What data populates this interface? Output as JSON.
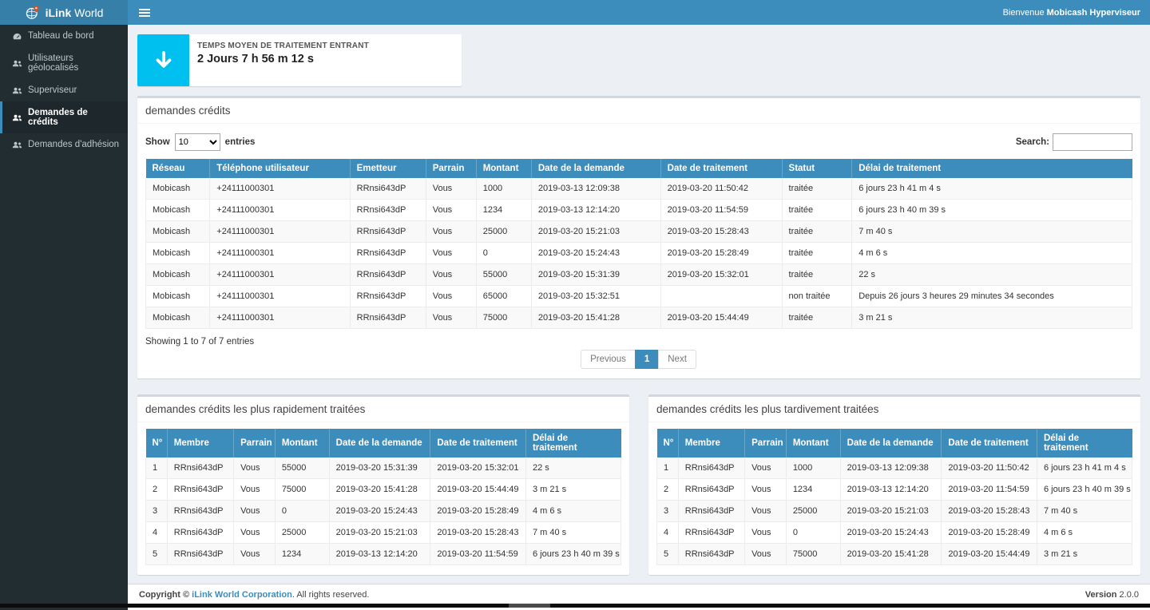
{
  "brand": {
    "name_bold": "iLink",
    "name_light": " World"
  },
  "header": {
    "welcome_prefix": "Bienvenue ",
    "welcome_user": "Mobicash Hyperviseur"
  },
  "sidebar": {
    "items": [
      {
        "label": "Tableau de bord",
        "icon": "tachometer-icon",
        "active": false
      },
      {
        "label": "Utilisateurs géolocalisés",
        "icon": "users-icon",
        "active": false
      },
      {
        "label": "Superviseur",
        "icon": "users-icon",
        "active": false
      },
      {
        "label": "Demandes de crédits",
        "icon": "users-icon",
        "active": true
      },
      {
        "label": "Demandes d'adhésion",
        "icon": "users-icon",
        "active": false
      }
    ]
  },
  "stat_card": {
    "title": "TEMPS MOYEN DE TRAITEMENT ENTRANT",
    "value": "2 Jours 7 h 56 m 12 s",
    "icon": "arrow-down-icon",
    "icon_bg": "#00c0ef"
  },
  "credits_box": {
    "title": "demandes crédits",
    "show_label": "Show",
    "page_length": "10",
    "entries_label": "entries",
    "search_label": "Search:",
    "search_value": "",
    "columns": [
      "Réseau",
      "Téléphone utilisateur",
      "Emetteur",
      "Parrain",
      "Montant",
      "Date de la demande",
      "Date de traitement",
      "Statut",
      "Délai de traitement"
    ],
    "rows": [
      [
        "Mobicash",
        "+24111000301",
        "RRnsi643dP",
        "Vous",
        "1000",
        "2019-03-13 12:09:38",
        "2019-03-20 11:50:42",
        "traitée",
        "6 jours 23 h 41 m 4 s"
      ],
      [
        "Mobicash",
        "+24111000301",
        "RRnsi643dP",
        "Vous",
        "1234",
        "2019-03-13 12:14:20",
        "2019-03-20 11:54:59",
        "traitée",
        "6 jours 23 h 40 m 39 s"
      ],
      [
        "Mobicash",
        "+24111000301",
        "RRnsi643dP",
        "Vous",
        "25000",
        "2019-03-20 15:21:03",
        "2019-03-20 15:28:43",
        "traitée",
        "7 m 40 s"
      ],
      [
        "Mobicash",
        "+24111000301",
        "RRnsi643dP",
        "Vous",
        "0",
        "2019-03-20 15:24:43",
        "2019-03-20 15:28:49",
        "traitée",
        "4 m 6 s"
      ],
      [
        "Mobicash",
        "+24111000301",
        "RRnsi643dP",
        "Vous",
        "55000",
        "2019-03-20 15:31:39",
        "2019-03-20 15:32:01",
        "traitée",
        "22 s"
      ],
      [
        "Mobicash",
        "+24111000301",
        "RRnsi643dP",
        "Vous",
        "65000",
        "2019-03-20 15:32:51",
        "",
        "non traitée",
        "Depuis 26 jours 3 heures 29 minutes 34 secondes"
      ],
      [
        "Mobicash",
        "+24111000301",
        "RRnsi643dP",
        "Vous",
        "75000",
        "2019-03-20 15:41:28",
        "2019-03-20 15:44:49",
        "traitée",
        "3 m 21 s"
      ]
    ],
    "summary": "Showing 1 to 7 of 7 entries",
    "pagination": {
      "previous": "Previous",
      "current": "1",
      "next": "Next"
    }
  },
  "fastest_box": {
    "title": "demandes crédits les plus rapidement traitées",
    "columns": [
      "N°",
      "Membre",
      "Parrain",
      "Montant",
      "Date de la demande",
      "Date de traitement",
      "Délai de traitement"
    ],
    "rows": [
      [
        "1",
        "RRnsi643dP",
        "Vous",
        "55000",
        "2019-03-20 15:31:39",
        "2019-03-20 15:32:01",
        "22 s"
      ],
      [
        "2",
        "RRnsi643dP",
        "Vous",
        "75000",
        "2019-03-20 15:41:28",
        "2019-03-20 15:44:49",
        "3 m 21 s"
      ],
      [
        "3",
        "RRnsi643dP",
        "Vous",
        "0",
        "2019-03-20 15:24:43",
        "2019-03-20 15:28:49",
        "4 m 6 s"
      ],
      [
        "4",
        "RRnsi643dP",
        "Vous",
        "25000",
        "2019-03-20 15:21:03",
        "2019-03-20 15:28:43",
        "7 m 40 s"
      ],
      [
        "5",
        "RRnsi643dP",
        "Vous",
        "1234",
        "2019-03-13 12:14:20",
        "2019-03-20 11:54:59",
        "6 jours 23 h 40 m 39 s"
      ]
    ]
  },
  "slowest_box": {
    "title": "demandes crédits les plus tardivement traitées",
    "columns": [
      "N°",
      "Membre",
      "Parrain",
      "Montant",
      "Date de la demande",
      "Date de traitement",
      "Délai de traitement"
    ],
    "rows": [
      [
        "1",
        "RRnsi643dP",
        "Vous",
        "1000",
        "2019-03-13 12:09:38",
        "2019-03-20 11:50:42",
        "6 jours 23 h 41 m 4 s"
      ],
      [
        "2",
        "RRnsi643dP",
        "Vous",
        "1234",
        "2019-03-13 12:14:20",
        "2019-03-20 11:54:59",
        "6 jours 23 h 40 m 39 s"
      ],
      [
        "3",
        "RRnsi643dP",
        "Vous",
        "25000",
        "2019-03-20 15:21:03",
        "2019-03-20 15:28:43",
        "7 m 40 s"
      ],
      [
        "4",
        "RRnsi643dP",
        "Vous",
        "0",
        "2019-03-20 15:24:43",
        "2019-03-20 15:28:49",
        "4 m 6 s"
      ],
      [
        "5",
        "RRnsi643dP",
        "Vous",
        "75000",
        "2019-03-20 15:41:28",
        "2019-03-20 15:44:49",
        "3 m 21 s"
      ]
    ]
  },
  "footer": {
    "copyright_prefix": "Copyright © ",
    "company": "iLink World Corporation",
    "copyright_suffix": ". All rights reserved.",
    "version_label": "Version",
    "version_value": " 2.0.0"
  },
  "colors": {
    "navbar": "#3c8dbc",
    "logo_bg": "#367fa9",
    "sidebar_bg": "#222d32",
    "active_border": "#3c8dbc",
    "table_header": "#3c8dbc",
    "stat_icon_bg": "#00c0ef",
    "content_bg": "#ecf0f5"
  }
}
